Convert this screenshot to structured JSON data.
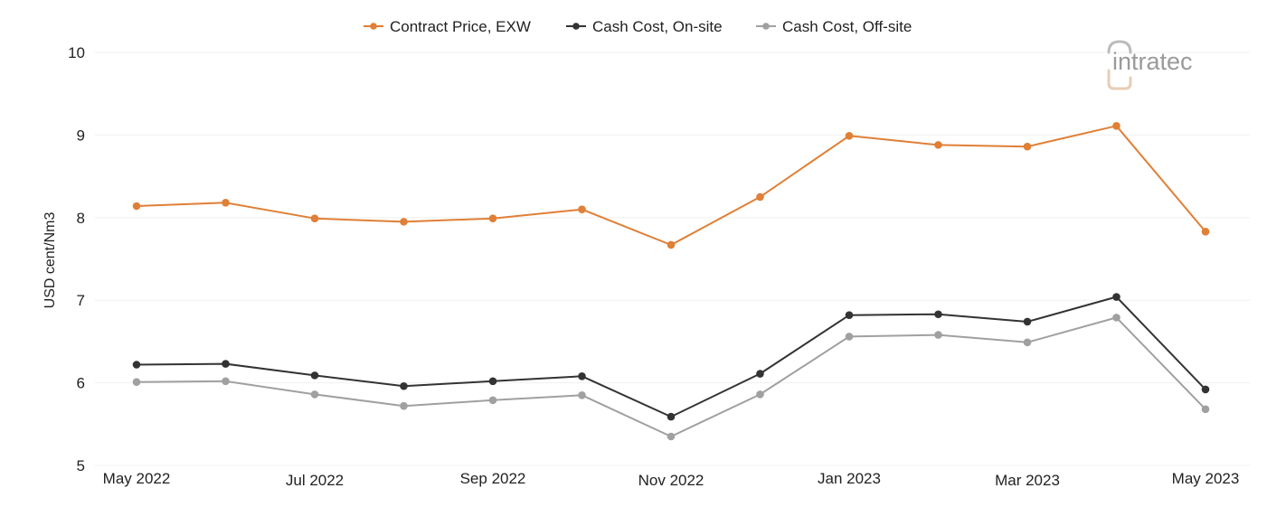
{
  "logo": {
    "text": "intratec"
  },
  "colors": {
    "grid": "#f0f0f0",
    "logo_accent": "#e8cdb5",
    "logo_text": "#9a9a9a"
  },
  "chart_data": {
    "type": "line",
    "ylabel": "USD cent/Nm3",
    "xlabel": "",
    "ylim": [
      5,
      10
    ],
    "yticks": [
      5,
      6,
      7,
      8,
      9,
      10
    ],
    "grid": true,
    "legend_position": "top-center",
    "categories": [
      "May 2022",
      "Jun 2022",
      "Jul 2022",
      "Aug 2022",
      "Sep 2022",
      "Oct 2022",
      "Nov 2022",
      "Dec 2022",
      "Jan 2023",
      "Feb 2023",
      "Mar 2023",
      "Apr 2023",
      "May 2023"
    ],
    "x_tick_labels": [
      "May 2022",
      "Jul 2022",
      "Sep 2022",
      "Nov 2022",
      "Jan 2023",
      "Mar 2023",
      "May 2023"
    ],
    "series": [
      {
        "name": "Contract Price, EXW",
        "color": "#e07f36",
        "values": [
          8.14,
          8.18,
          7.99,
          7.95,
          7.99,
          8.1,
          7.67,
          8.25,
          8.99,
          8.88,
          8.86,
          9.11,
          7.83
        ]
      },
      {
        "name": "Cash Cost, On-site",
        "color": "#333333",
        "values": [
          6.22,
          6.23,
          6.09,
          5.96,
          6.02,
          6.08,
          5.59,
          6.11,
          6.82,
          6.83,
          6.74,
          7.04,
          5.92
        ]
      },
      {
        "name": "Cash Cost, Off-site",
        "color": "#a0a0a0",
        "values": [
          6.01,
          6.02,
          5.86,
          5.72,
          5.79,
          5.85,
          5.35,
          5.86,
          6.56,
          6.58,
          6.49,
          6.79,
          5.68
        ]
      }
    ]
  }
}
